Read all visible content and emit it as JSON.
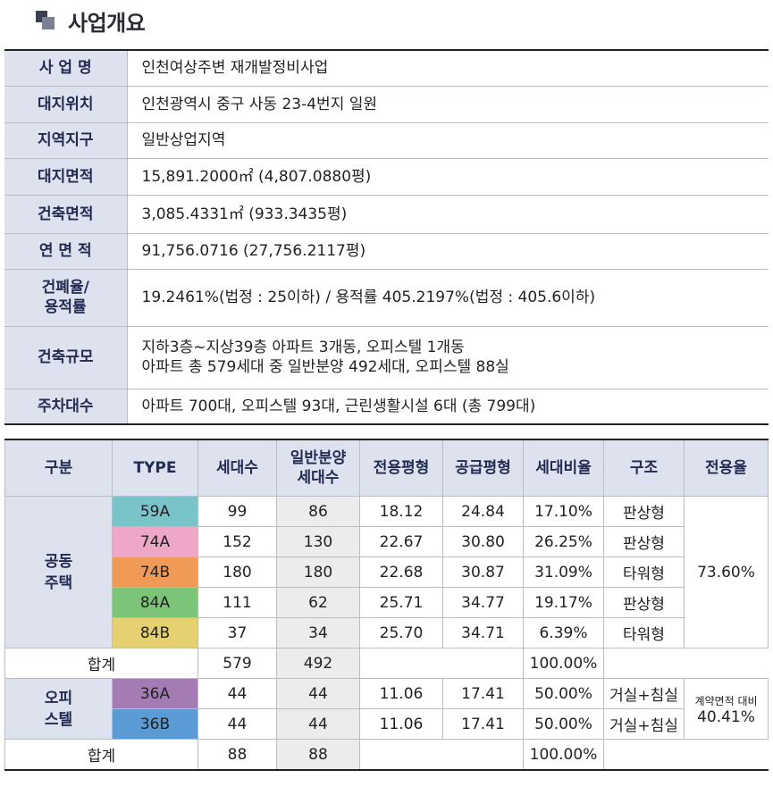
{
  "heading": "사업개요",
  "info_rows": [
    {
      "label": "사 업 명",
      "lines": [
        "인천여상주변 재개발정비사업"
      ]
    },
    {
      "label": "대지위치",
      "lines": [
        "인천광역시 중구 사동 23-4번지 일원"
      ]
    },
    {
      "label": "지역지구",
      "lines": [
        "일반상업지역"
      ]
    },
    {
      "label": "대지면적",
      "lines": [
        "15,891.2000㎡ (4,807.0880평)"
      ]
    },
    {
      "label": "건축면적",
      "lines": [
        "3,085.4331㎡ (933.3435평)"
      ]
    },
    {
      "label": "연 면 적",
      "lines": [
        "91,756.0716 (27,756.2117평)"
      ]
    },
    {
      "label": "건폐율/\n용적률",
      "lines": [
        "19.2461%(법정 : 25이하) / 용적률 405.2197%(법정 : 405.6이하)"
      ]
    },
    {
      "label": "건축규모",
      "lines": [
        "지하3층~지상39층 아파트 3개동, 오피스텔 1개동",
        "아파트 총 579세대 중 일반분양 492세대, 오피스텔 88실"
      ]
    },
    {
      "label": "주차대수",
      "lines": [
        "아파트 700대, 오피스텔 93대, 근린생활시설 6대 (총 799대)"
      ]
    }
  ],
  "unit_table": {
    "headers": [
      "구분",
      "TYPE",
      "세대수",
      "일반분양\n세대수",
      "전용평형",
      "공급평형",
      "세대비율",
      "구조",
      "전용율"
    ],
    "apartment_group": "공동\n주택",
    "apartment_rows": [
      {
        "type": "59A",
        "color": "#79c4c9",
        "units": "99",
        "general": "86",
        "exclusive": "18.12",
        "supply": "24.84",
        "ratio": "17.10%",
        "structure": "판상형"
      },
      {
        "type": "74A",
        "color": "#efa7c8",
        "units": "152",
        "general": "130",
        "exclusive": "22.67",
        "supply": "30.80",
        "ratio": "26.25%",
        "structure": "판상형"
      },
      {
        "type": "74B",
        "color": "#f09a57",
        "units": "180",
        "general": "180",
        "exclusive": "22.68",
        "supply": "30.87",
        "ratio": "31.09%",
        "structure": "타워형"
      },
      {
        "type": "84A",
        "color": "#7cc477",
        "units": "111",
        "general": "62",
        "exclusive": "25.71",
        "supply": "34.77",
        "ratio": "19.17%",
        "structure": "판상형"
      },
      {
        "type": "84B",
        "color": "#e6d170",
        "units": "37",
        "general": "34",
        "exclusive": "25.70",
        "supply": "34.71",
        "ratio": "6.39%",
        "structure": "타워형"
      }
    ],
    "apartment_exclusive_rate": "73.60%",
    "apartment_total": {
      "label": "합계",
      "units": "579",
      "general": "492",
      "ratio": "100.00%"
    },
    "officetel_group": "오피\n스텔",
    "officetel_rows": [
      {
        "type": "36A",
        "color": "#a57bb4",
        "units": "44",
        "general": "44",
        "exclusive": "11.06",
        "supply": "17.41",
        "ratio": "50.00%",
        "structure": "거실+침실"
      },
      {
        "type": "36B",
        "color": "#5a9bd6",
        "units": "44",
        "general": "44",
        "exclusive": "11.06",
        "supply": "17.41",
        "ratio": "50.00%",
        "structure": "거실+침실"
      }
    ],
    "officetel_rate_note": "계약면적 대비",
    "officetel_exclusive_rate": "40.41%",
    "officetel_total": {
      "label": "합계",
      "units": "88",
      "general": "88",
      "ratio": "100.00%"
    }
  }
}
